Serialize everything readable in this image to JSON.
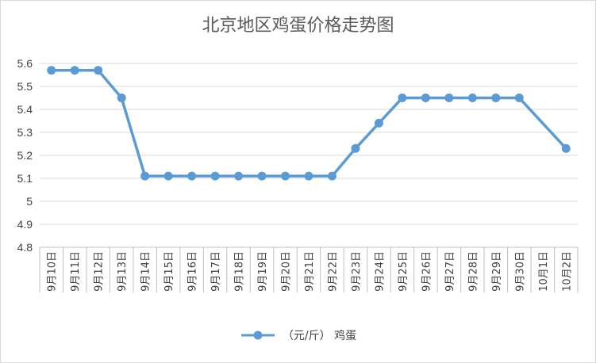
{
  "chart_data": {
    "type": "line",
    "title": "北京地区鸡蛋价格走势图",
    "categories": [
      "9月10日",
      "9月11日",
      "9月12日",
      "9月13日",
      "9月14日",
      "9月15日",
      "9月16日",
      "9月17日",
      "9月18日",
      "9月19日",
      "9月20日",
      "9月21日",
      "9月22日",
      "9月23日",
      "9月24日",
      "9月25日",
      "9月26日",
      "9月27日",
      "9月28日",
      "9月29日",
      "9月30日",
      "10月1日",
      "10月2日"
    ],
    "series": [
      {
        "name": "（元/斤） 鸡蛋",
        "values": [
          5.57,
          5.57,
          5.57,
          5.45,
          5.11,
          5.11,
          5.11,
          5.11,
          5.11,
          5.11,
          5.11,
          5.11,
          5.11,
          5.23,
          5.34,
          5.45,
          5.45,
          5.45,
          5.45,
          5.45,
          5.45,
          null,
          5.23
        ]
      }
    ],
    "yticks": [
      "5.6",
      "5.5",
      "5.4",
      "5.3",
      "5.2",
      "5.1",
      "5",
      "4.9",
      "4.8"
    ],
    "ylim": [
      4.8,
      5.6
    ],
    "xlabel": "",
    "ylabel": "",
    "legend_position": "bottom",
    "grid": "horizontal",
    "colors": {
      "series": "#5b9bd5",
      "grid": "#d9d9d9",
      "text": "#595959"
    }
  }
}
